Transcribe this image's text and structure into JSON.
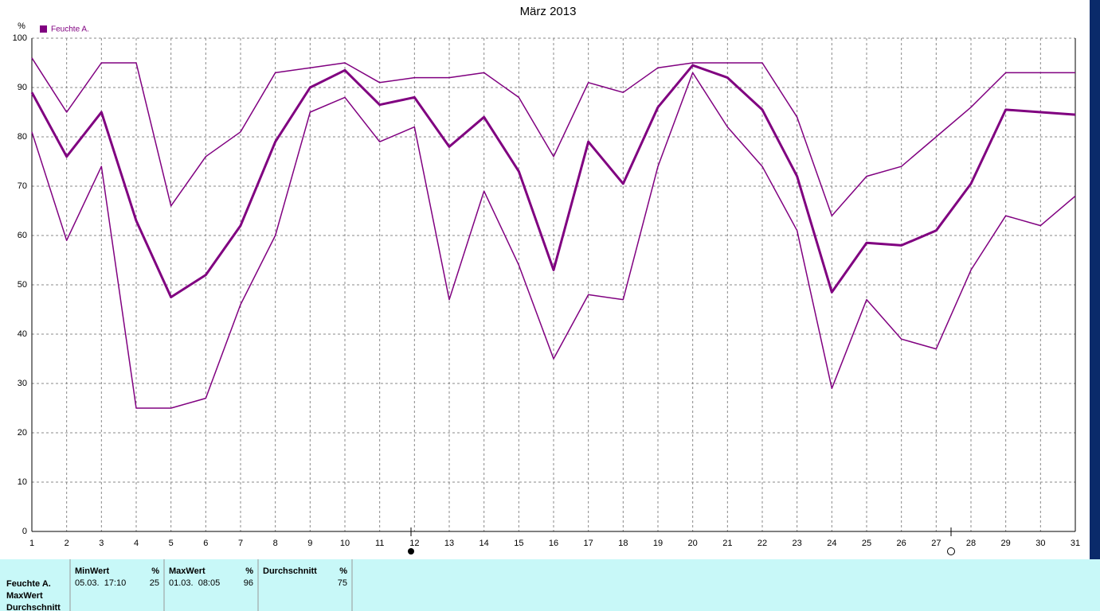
{
  "chart_data": {
    "type": "line",
    "title": "März 2013",
    "y_label": "%",
    "x": [
      1,
      2,
      3,
      4,
      5,
      6,
      7,
      8,
      9,
      10,
      11,
      12,
      13,
      14,
      15,
      16,
      17,
      18,
      19,
      20,
      21,
      22,
      23,
      24,
      25,
      26,
      27,
      28,
      29,
      30,
      31
    ],
    "series": [
      {
        "color": "#800080",
        "width": 1.5,
        "values": [
          96,
          85,
          95,
          95,
          66,
          76,
          81,
          93,
          94,
          95,
          91,
          92,
          92,
          93,
          88,
          76,
          91,
          89,
          94,
          95,
          95,
          95,
          84,
          64,
          72,
          74,
          80,
          86,
          93,
          93,
          93
        ]
      },
      {
        "name": "Feuchte A.",
        "color": "#800080",
        "width": 3,
        "values": [
          89,
          76,
          85,
          63,
          47.5,
          52,
          62,
          79,
          90,
          93.5,
          86.5,
          88,
          78,
          84,
          73,
          53,
          79,
          70.5,
          86,
          94.5,
          92,
          85.5,
          72,
          48.5,
          58.5,
          58,
          61,
          70.5,
          85.5,
          85,
          84.5
        ]
      },
      {
        "color": "#800080",
        "width": 1.5,
        "values": [
          81,
          59,
          74,
          25,
          25,
          27,
          46,
          60,
          85,
          88,
          79,
          82,
          47,
          69,
          54,
          35,
          48,
          47,
          74,
          93,
          82,
          74,
          61,
          29,
          47,
          39,
          37,
          53,
          64,
          62,
          68
        ]
      }
    ],
    "xlim": [
      1,
      31
    ],
    "xticks": [
      1,
      2,
      3,
      4,
      5,
      6,
      7,
      8,
      9,
      10,
      11,
      12,
      13,
      14,
      15,
      16,
      17,
      18,
      19,
      20,
      21,
      22,
      23,
      24,
      25,
      26,
      27,
      28,
      29,
      30,
      31
    ],
    "ylim": [
      0,
      100
    ],
    "yticks": [
      0,
      10,
      20,
      30,
      40,
      50,
      60,
      70,
      80,
      90,
      100
    ],
    "grid": true,
    "legend": "top-left"
  },
  "summary": {
    "row_labels": [
      "Feuchte A.",
      "MaxWert",
      "Durchschnitt"
    ],
    "columns": [
      {
        "header": "MinWert",
        "unit": "%",
        "time": "05.03.  17:10",
        "value": 25
      },
      {
        "header": "MaxWert",
        "unit": "%",
        "time": "01.03.  08:05",
        "value": 96
      },
      {
        "header": "Durchschnitt",
        "unit": "%",
        "value": 75
      }
    ]
  }
}
